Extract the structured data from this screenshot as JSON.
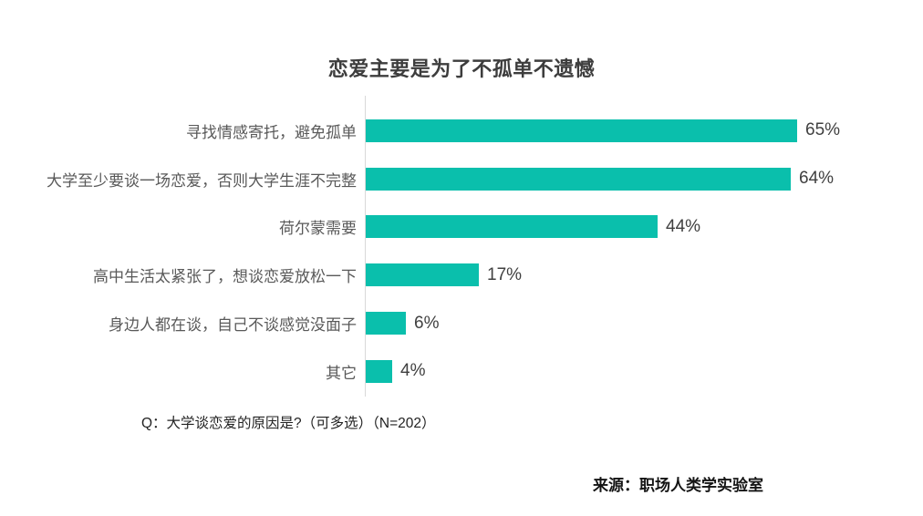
{
  "page": {
    "background_color": "#ffffff"
  },
  "chart_data": {
    "type": "bar",
    "orientation": "horizontal",
    "title": "恋爱主要是为了不孤单不遗憾",
    "categories": [
      "寻找情感寄托，避免孤单",
      "大学至少要谈一场恋爱，否则大学生涯不完整",
      "荷尔蒙需要",
      "高中生活太紧张了，想谈恋爱放松一下",
      "身边人都在谈，自己不谈感觉没面子",
      "其它"
    ],
    "values": [
      65,
      64,
      44,
      17,
      6,
      4
    ],
    "value_labels": [
      "65%",
      "64%",
      "44%",
      "17%",
      "6%",
      "4%"
    ],
    "xlabel": "",
    "ylabel": "",
    "xlim": [
      0,
      65
    ],
    "grid": false,
    "legend": false,
    "bar_color": "#0abfac",
    "axis_line_color": "#d9d9d9",
    "category_label_color": "#595959",
    "value_label_color": "#404040"
  },
  "footnote": {
    "question": "Q：大学谈恋爱的原因是?（可多选）（N=202）",
    "source": "来源：职场人类学实验室"
  }
}
